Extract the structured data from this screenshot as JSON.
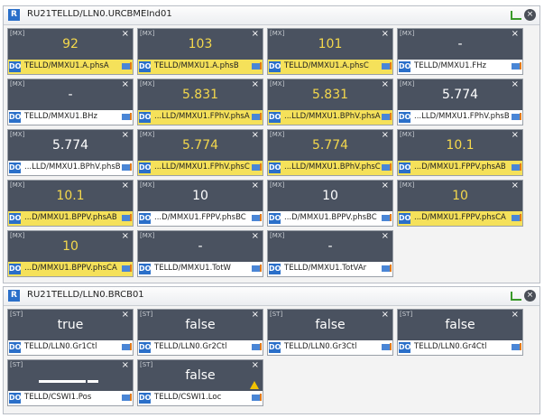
{
  "panels": [
    {
      "icon": "R",
      "title": "RU21TELLD/LLN0.URCBMEInd01",
      "tiles": [
        {
          "tag": "[MX]",
          "value": "92",
          "badge": "DO",
          "path": "TELLD/MMXU1.A.phsA",
          "highlight": true
        },
        {
          "tag": "[MX]",
          "value": "103",
          "badge": "DO",
          "path": "TELLD/MMXU1.A.phsB",
          "highlight": true
        },
        {
          "tag": "[MX]",
          "value": "101",
          "badge": "DO",
          "path": "TELLD/MMXU1.A.phsC",
          "highlight": true
        },
        {
          "tag": "[MX]",
          "value": "-",
          "badge": "DO",
          "path": "TELLD/MMXU1.FHz",
          "highlight": false
        },
        {
          "tag": "[MX]",
          "value": "-",
          "badge": "DO",
          "path": "TELLD/MMXU1.BHz",
          "highlight": false
        },
        {
          "tag": "[MX]",
          "value": "5.831",
          "badge": "DO",
          "path": "...LLD/MMXU1.FPhV.phsA",
          "highlight": true
        },
        {
          "tag": "[MX]",
          "value": "5.831",
          "badge": "DO",
          "path": "...LLD/MMXU1.BPhV.phsA",
          "highlight": true
        },
        {
          "tag": "[MX]",
          "value": "5.774",
          "badge": "DO",
          "path": "...LLD/MMXU1.FPhV.phsB",
          "highlight": false
        },
        {
          "tag": "[MX]",
          "value": "5.774",
          "badge": "DO",
          "path": "...LLD/MMXU1.BPhV.phsB",
          "highlight": false
        },
        {
          "tag": "[MX]",
          "value": "5.774",
          "badge": "DO",
          "path": "...LLD/MMXU1.FPhV.phsC",
          "highlight": true
        },
        {
          "tag": "[MX]",
          "value": "5.774",
          "badge": "DO",
          "path": "...LLD/MMXU1.BPhV.phsC",
          "highlight": true
        },
        {
          "tag": "[MX]",
          "value": "10.1",
          "badge": "DO",
          "path": "...D/MMXU1.FPPV.phsAB",
          "highlight": true
        },
        {
          "tag": "[MX]",
          "value": "10.1",
          "badge": "DO",
          "path": "...D/MMXU1.BPPV.phsAB",
          "highlight": true
        },
        {
          "tag": "[MX]",
          "value": "10",
          "badge": "DO",
          "path": "...D/MMXU1.FPPV.phsBC",
          "highlight": false
        },
        {
          "tag": "[MX]",
          "value": "10",
          "badge": "DO",
          "path": "...D/MMXU1.BPPV.phsBC",
          "highlight": false
        },
        {
          "tag": "[MX]",
          "value": "10",
          "badge": "DO",
          "path": "...D/MMXU1.FPPV.phsCA",
          "highlight": true
        },
        {
          "tag": "[MX]",
          "value": "10",
          "badge": "DO",
          "path": "...D/MMXU1.BPPV.phsCA",
          "highlight": true
        },
        {
          "tag": "[MX]",
          "value": "-",
          "badge": "DO",
          "path": "TELLD/MMXU1.TotW",
          "highlight": false
        },
        {
          "tag": "[MX]",
          "value": "-",
          "badge": "DO",
          "path": "TELLD/MMXU1.TotVAr",
          "highlight": false
        }
      ]
    },
    {
      "icon": "R",
      "title": "RU21TELLD/LLN0.BRCB01",
      "tiles": [
        {
          "tag": "[ST]",
          "value": "true",
          "badge": "DO",
          "path": "TELLD/LLN0.Gr1Ctl",
          "highlight": false
        },
        {
          "tag": "[ST]",
          "value": "false",
          "badge": "DO",
          "path": "TELLD/LLN0.Gr2Ctl",
          "highlight": false
        },
        {
          "tag": "[ST]",
          "value": "false",
          "badge": "DO",
          "path": "TELLD/LLN0.Gr3Ctl",
          "highlight": false
        },
        {
          "tag": "[ST]",
          "value": "false",
          "badge": "DO",
          "path": "TELLD/LLN0.Gr4Ctl",
          "highlight": false
        },
        {
          "tag": "[ST]",
          "badge": "DO",
          "path": "TELLD/CSWI1.Pos",
          "highlight": false
        },
        {
          "tag": "[ST]",
          "value": "false",
          "badge": "DO",
          "path": "TELLD/CSWI1.Loc",
          "highlight": false,
          "warning": true
        }
      ]
    }
  ]
}
